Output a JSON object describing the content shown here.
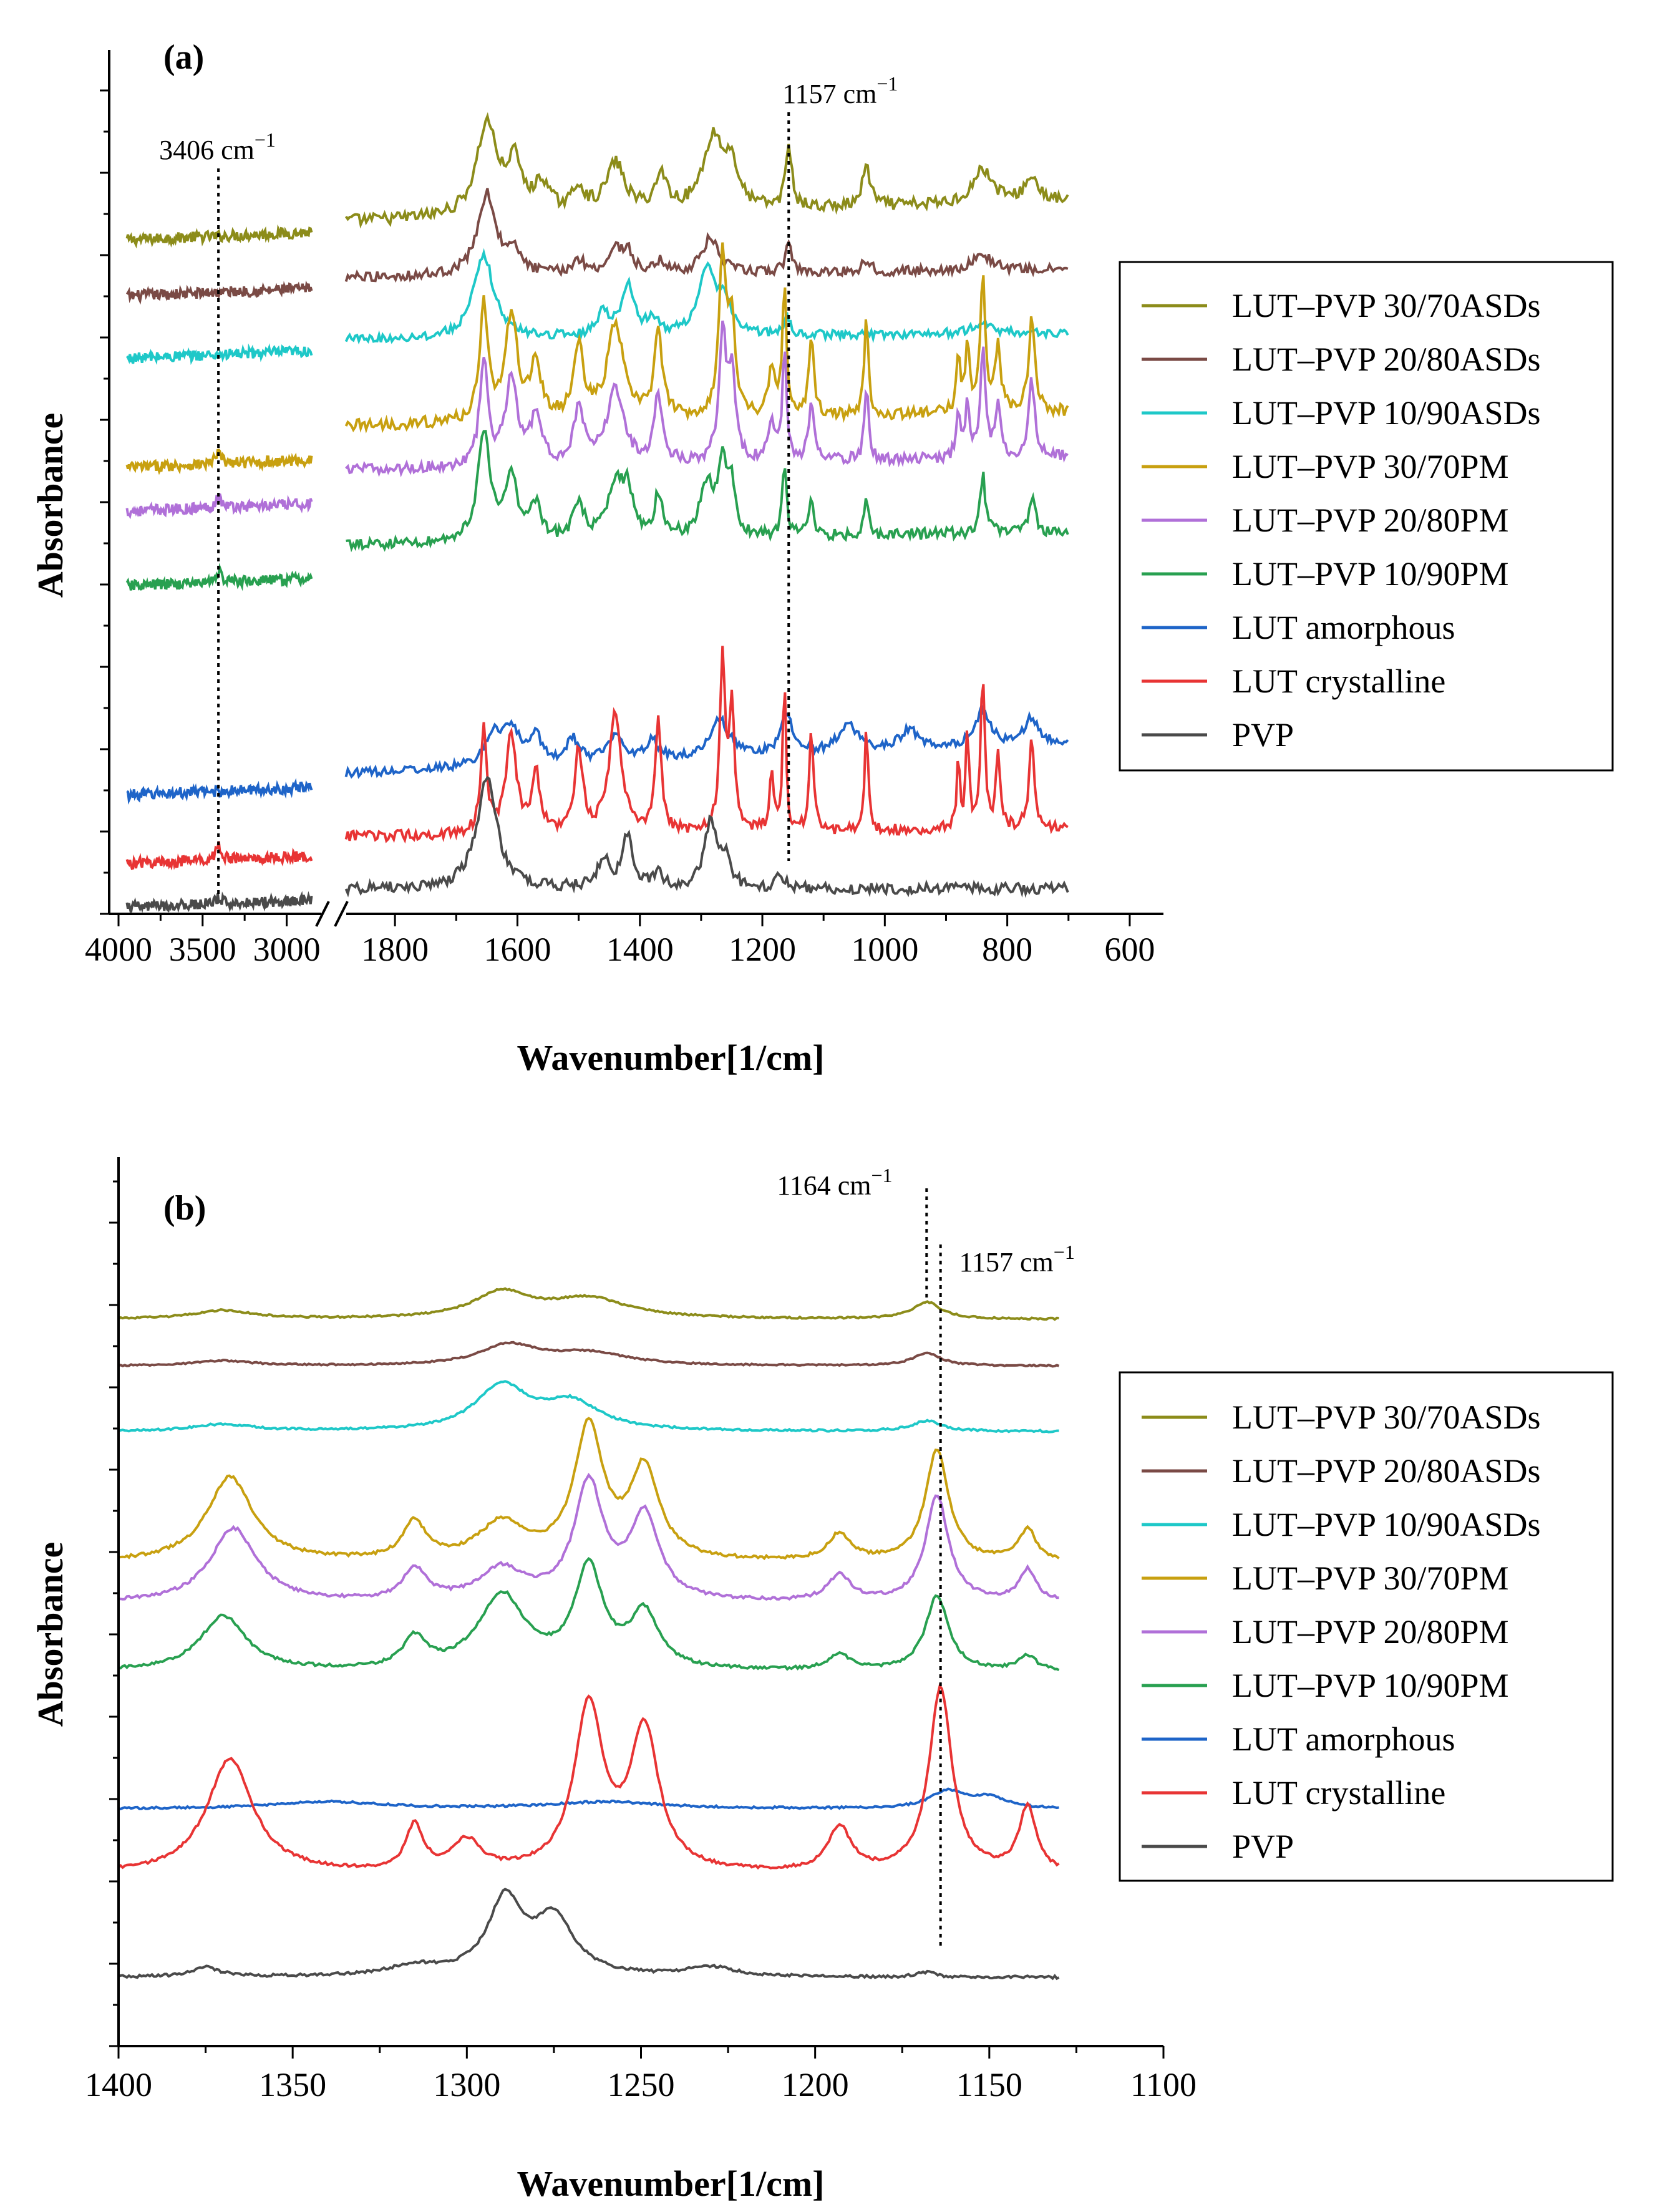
{
  "colors": {
    "LUT–PVP 30/70ASDs": "#8c8c1a",
    "LUT–PVP 20/80ASDs": "#7a4a45",
    "LUT–PVP 10/90ASDs": "#1ec8c8",
    "LUT–PVP 30/70PM": "#c8a010",
    "LUT–PVP 20/80PM": "#b070d8",
    "LUT–PVP 10/90PM": "#28a050",
    "LUT amorphous": "#1e64c8",
    "LUT crystalline": "#e83434",
    "PVP": "#4a4a4a"
  },
  "chart_data": [
    {
      "type": "line",
      "panel_label": "(a)",
      "xlabel": "Wavenumber[1/cm]",
      "ylabel": "Absorbance",
      "x_segments": [
        {
          "xlim": [
            4000,
            2850
          ],
          "ticks": [
            4000,
            3500,
            3000
          ],
          "tick_labels": [
            "4000",
            "3500",
            "3000"
          ]
        },
        {
          "xlim": [
            1900,
            550
          ],
          "ticks": [
            1800,
            1600,
            1400,
            1200,
            1000,
            800,
            600
          ],
          "tick_labels": [
            "1800",
            "1600",
            "1400",
            "1200",
            "1000",
            "800",
            "600"
          ]
        }
      ],
      "axis_break": true,
      "legend_position": "right",
      "legend": [
        "LUT–PVP 30/70ASDs",
        "LUT–PVP 20/80ASDs",
        "LUT–PVP 10/90ASDs",
        "LUT–PVP 30/70PM",
        "LUT–PVP 20/80PM",
        "LUT–PVP 10/90PM",
        "LUT amorphous",
        "LUT crystalline",
        "PVP"
      ],
      "annotations": [
        {
          "text": "3406 cm",
          "superscript": "−1",
          "x": 3406
        },
        {
          "text": "1157 cm",
          "superscript": "−1",
          "x": 1157
        }
      ],
      "series": [
        {
          "name": "LUT–PVP 30/70ASDs",
          "hr_baseline": 0.0,
          "peaks": [
            [
              1650,
              1.9,
              20
            ],
            [
              1605,
              1.0,
              14
            ],
            [
              1560,
              0.6,
              14
            ],
            [
              1500,
              0.5,
              12
            ],
            [
              1440,
              1.0,
              18
            ],
            [
              1365,
              0.7,
              12
            ],
            [
              1280,
              1.5,
              20
            ],
            [
              1250,
              0.8,
              12
            ],
            [
              1157,
              1.3,
              6
            ],
            [
              1030,
              0.8,
              8
            ],
            [
              840,
              0.7,
              20
            ],
            [
              760,
              0.5,
              14
            ]
          ],
          "baseline": 0.0,
          "baseline_slope": -0.4,
          "hr_level": 0.0,
          "oh_peak": 0.0
        },
        {
          "name": "LUT–PVP 20/80ASDs",
          "peaks": [
            [
              1650,
              2.1,
              18
            ],
            [
              1605,
              0.5,
              14
            ],
            [
              1500,
              0.35,
              12
            ],
            [
              1440,
              0.6,
              14
            ],
            [
              1420,
              0.5,
              10
            ],
            [
              1365,
              0.3,
              10
            ],
            [
              1285,
              0.9,
              16
            ],
            [
              1157,
              0.8,
              6
            ],
            [
              1030,
              0.3,
              8
            ],
            [
              840,
              0.4,
              20
            ]
          ],
          "baseline": 0.0,
          "baseline_slope": -0.2,
          "hr_level": 0.0,
          "oh_peak": 0.0
        },
        {
          "name": "LUT–PVP 10/90ASDs",
          "peaks": [
            [
              1655,
              2.4,
              20
            ],
            [
              1460,
              0.7,
              12
            ],
            [
              1420,
              1.5,
              12
            ],
            [
              1380,
              0.5,
              10
            ],
            [
              1290,
              1.9,
              18
            ],
            [
              1260,
              0.8,
              12
            ],
            [
              1160,
              0.5,
              6
            ],
            [
              840,
              0.3,
              20
            ]
          ],
          "baseline": 0.0,
          "baseline_slope": -0.2,
          "hr_level": 0.0,
          "oh_peak": 0.0
        },
        {
          "name": "LUT–PVP 30/70PM",
          "peaks": [
            [
              1655,
              2.5,
              8
            ],
            [
              1610,
              2.2,
              12
            ],
            [
              1570,
              1.2,
              10
            ],
            [
              1500,
              1.5,
              10
            ],
            [
              1440,
              2.0,
              16
            ],
            [
              1370,
              1.8,
              8
            ],
            [
              1265,
              3.3,
              7
            ],
            [
              1250,
              2.0,
              7
            ],
            [
              1185,
              1.0,
              6
            ],
            [
              1164,
              2.8,
              4
            ],
            [
              1120,
              1.6,
              5
            ],
            [
              1030,
              2.1,
              4
            ],
            [
              880,
              1.2,
              4
            ],
            [
              865,
              1.5,
              4
            ],
            [
              840,
              2.9,
              5
            ],
            [
              815,
              1.5,
              5
            ],
            [
              760,
              2.0,
              6
            ]
          ],
          "baseline": 0.5,
          "baseline_slope": -0.3,
          "hr_level": 0.0,
          "oh_peak": 0.3
        },
        {
          "name": "LUT–PVP 20/80PM",
          "peaks": [
            [
              1655,
              2.3,
              8
            ],
            [
              1610,
              1.9,
              12
            ],
            [
              1570,
              1.1,
              10
            ],
            [
              1500,
              1.2,
              10
            ],
            [
              1440,
              1.7,
              16
            ],
            [
              1370,
              1.5,
              8
            ],
            [
              1265,
              2.8,
              7
            ],
            [
              1250,
              1.9,
              7
            ],
            [
              1185,
              0.9,
              6
            ],
            [
              1164,
              2.5,
              4
            ],
            [
              1120,
              1.4,
              5
            ],
            [
              1030,
              1.7,
              4
            ],
            [
              880,
              1.0,
              4
            ],
            [
              865,
              1.3,
              4
            ],
            [
              840,
              2.4,
              5
            ],
            [
              815,
              1.3,
              5
            ],
            [
              760,
              1.7,
              6
            ]
          ],
          "baseline": 0.5,
          "baseline_slope": -0.3,
          "hr_level": 0.0,
          "oh_peak": 0.3
        },
        {
          "name": "LUT–PVP 10/90PM",
          "peaks": [
            [
              1655,
              2.4,
              12
            ],
            [
              1610,
              1.4,
              12
            ],
            [
              1570,
              0.8,
              10
            ],
            [
              1500,
              0.8,
              10
            ],
            [
              1440,
              1.2,
              14
            ],
            [
              1420,
              1.0,
              10
            ],
            [
              1370,
              0.9,
              8
            ],
            [
              1290,
              1.2,
              14
            ],
            [
              1265,
              1.6,
              7
            ],
            [
              1250,
              1.1,
              7
            ],
            [
              1164,
              1.6,
              4
            ],
            [
              1120,
              0.8,
              5
            ],
            [
              1030,
              0.9,
              4
            ],
            [
              840,
              1.3,
              5
            ],
            [
              760,
              0.8,
              6
            ]
          ],
          "baseline": 0.5,
          "baseline_slope": -0.3,
          "hr_level": 0.0,
          "oh_peak": 0.3
        },
        {
          "name": "LUT amorphous",
          "peaks": [
            [
              1640,
              0.9,
              16
            ],
            [
              1610,
              1.0,
              16
            ],
            [
              1570,
              0.8,
              12
            ],
            [
              1510,
              0.7,
              12
            ],
            [
              1440,
              0.8,
              16
            ],
            [
              1380,
              0.6,
              12
            ],
            [
              1270,
              1.1,
              20
            ],
            [
              1160,
              1.2,
              12
            ],
            [
              1060,
              0.8,
              20
            ],
            [
              960,
              0.6,
              20
            ],
            [
              840,
              1.1,
              16
            ],
            [
              760,
              0.8,
              16
            ]
          ],
          "baseline": 0.1,
          "baseline_slope": -0.8,
          "hr_level": 0.0,
          "oh_peak": 0.0
        },
        {
          "name": "LUT crystalline",
          "peaks": [
            [
              1655,
              2.4,
              6
            ],
            [
              1610,
              2.3,
              10
            ],
            [
              1570,
              1.4,
              8
            ],
            [
              1500,
              1.9,
              8
            ],
            [
              1440,
              2.8,
              12
            ],
            [
              1370,
              2.6,
              6
            ],
            [
              1265,
              4.0,
              5
            ],
            [
              1250,
              3.0,
              5
            ],
            [
              1185,
              1.4,
              4
            ],
            [
              1164,
              3.6,
              3
            ],
            [
              1120,
              2.4,
              4
            ],
            [
              1030,
              2.7,
              3
            ],
            [
              880,
              1.6,
              3
            ],
            [
              865,
              2.4,
              3
            ],
            [
              840,
              3.6,
              4
            ],
            [
              815,
              1.8,
              4
            ],
            [
              760,
              2.2,
              5
            ]
          ],
          "baseline": 0.2,
          "baseline_slope": -0.2,
          "hr_level": 0.0,
          "oh_peak": 0.4
        },
        {
          "name": "PVP",
          "peaks": [
            [
              1650,
              2.5,
              20
            ],
            [
              1460,
              0.7,
              10
            ],
            [
              1420,
              1.2,
              10
            ],
            [
              1370,
              0.4,
              8
            ],
            [
              1285,
              1.5,
              12
            ],
            [
              1260,
              0.6,
              10
            ],
            [
              1170,
              0.3,
              8
            ]
          ],
          "baseline": 0.0,
          "baseline_slope": 0.0,
          "hr_level": 0.0,
          "oh_peak": 0.15
        }
      ]
    },
    {
      "type": "line",
      "panel_label": "(b)",
      "xlabel": "Wavenumber[1/cm]",
      "ylabel": "Absorbance",
      "xlim": [
        1400,
        1100
      ],
      "x_ticks": [
        1400,
        1350,
        1300,
        1250,
        1200,
        1150,
        1100
      ],
      "x_tick_labels": [
        "1400",
        "1350",
        "1300",
        "1250",
        "1200",
        "1150",
        "1100"
      ],
      "legend_position": "right",
      "legend": [
        "LUT–PVP 30/70ASDs",
        "LUT–PVP 20/80ASDs",
        "LUT–PVP 10/90ASDs",
        "LUT–PVP 30/70PM",
        "LUT–PVP 20/80PM",
        "LUT–PVP 10/90PM",
        "LUT amorphous",
        "LUT crystalline",
        "PVP"
      ],
      "annotations": [
        {
          "text": "1164 cm",
          "superscript": "−1",
          "x": 1168
        },
        {
          "text": "1157 cm",
          "superscript": "−1",
          "x": 1164
        }
      ],
      "series": [
        {
          "name": "LUT–PVP 30/70ASDs",
          "peaks": [
            [
              1370,
              0.3,
              10
            ],
            [
              1290,
              0.9,
              10
            ],
            [
              1265,
              0.7,
              14
            ],
            [
              1168,
              0.6,
              5
            ]
          ],
          "baseline": 0.0
        },
        {
          "name": "LUT–PVP 20/80ASDs",
          "peaks": [
            [
              1370,
              0.2,
              10
            ],
            [
              1288,
              0.8,
              10
            ],
            [
              1265,
              0.5,
              14
            ],
            [
              1168,
              0.5,
              5
            ]
          ],
          "baseline": 0.0
        },
        {
          "name": "LUT–PVP 10/90ASDs",
          "peaks": [
            [
              1370,
              0.2,
              10
            ],
            [
              1290,
              1.3,
              9
            ],
            [
              1270,
              0.8,
              10
            ],
            [
              1168,
              0.3,
              5
            ]
          ],
          "baseline": 0.0
        },
        {
          "name": "LUT–PVP 30/70PM",
          "peaks": [
            [
              1368,
              1.6,
              8
            ],
            [
              1315,
              0.7,
              4
            ],
            [
              1290,
              0.7,
              8
            ],
            [
              1265,
              2.5,
              5
            ],
            [
              1249,
              1.7,
              5
            ],
            [
              1193,
              0.5,
              4
            ],
            [
              1165,
              2.1,
              4
            ],
            [
              1139,
              0.6,
              3
            ]
          ],
          "baseline": 0.0
        },
        {
          "name": "LUT–PVP 20/80PM",
          "peaks": [
            [
              1367,
              1.4,
              8
            ],
            [
              1315,
              0.6,
              4
            ],
            [
              1290,
              0.6,
              8
            ],
            [
              1265,
              2.2,
              5
            ],
            [
              1249,
              1.6,
              5
            ],
            [
              1193,
              0.5,
              4
            ],
            [
              1165,
              2.0,
              4
            ],
            [
              1139,
              0.6,
              3
            ]
          ],
          "baseline": 0.0
        },
        {
          "name": "LUT–PVP 10/90PM",
          "peaks": [
            [
              1370,
              1.1,
              8
            ],
            [
              1315,
              0.6,
              4
            ],
            [
              1290,
              1.5,
              8
            ],
            [
              1265,
              2.0,
              5
            ],
            [
              1249,
              1.1,
              5
            ],
            [
              1193,
              0.3,
              4
            ],
            [
              1165,
              1.5,
              4
            ],
            [
              1139,
              0.3,
              3
            ]
          ],
          "baseline": 0.0
        },
        {
          "name": "LUT amorphous",
          "peaks": [
            [
              1340,
              0.2,
              20
            ],
            [
              1260,
              0.2,
              20
            ],
            [
              1162,
              0.5,
              6
            ],
            [
              1150,
              0.3,
              6
            ]
          ],
          "baseline": 0.0
        },
        {
          "name": "LUT crystalline",
          "peaks": [
            [
              1368,
              2.3,
              8
            ],
            [
              1315,
              0.9,
              3
            ],
            [
              1300,
              0.6,
              5
            ],
            [
              1265,
              3.3,
              5
            ],
            [
              1249,
              2.8,
              5
            ],
            [
              1193,
              0.9,
              4
            ],
            [
              1164,
              3.7,
              4
            ],
            [
              1139,
              1.3,
              3
            ]
          ],
          "baseline": 0.0
        },
        {
          "name": "PVP",
          "peaks": [
            [
              1375,
              0.2,
              5
            ],
            [
              1315,
              0.2,
              10
            ],
            [
              1289,
              1.6,
              6
            ],
            [
              1275,
              1.2,
              7
            ],
            [
              1230,
              0.2,
              8
            ],
            [
              1168,
              0.1,
              3
            ]
          ],
          "baseline": 0.0
        }
      ]
    }
  ]
}
